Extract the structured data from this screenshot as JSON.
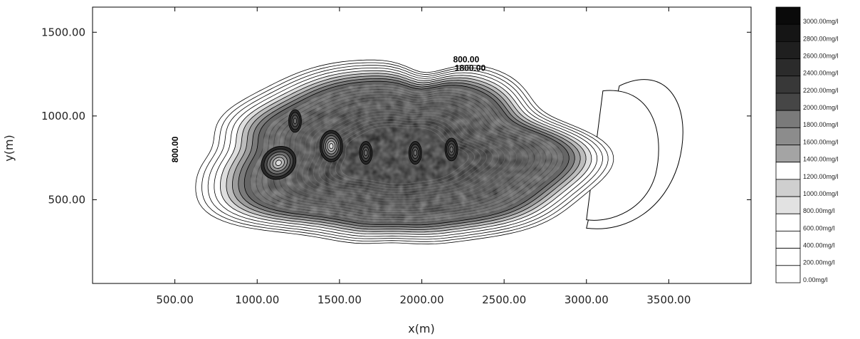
{
  "chart_data": {
    "type": "contour",
    "xlabel": "x(m)",
    "ylabel": "y(m)",
    "xlim": [
      0,
      4000
    ],
    "ylim": [
      0,
      1650
    ],
    "x_ticks": [
      500,
      1000,
      1500,
      2000,
      2500,
      3000,
      3500
    ],
    "x_tick_labels": [
      "500.00",
      "1000.00",
      "1500.00",
      "2000.00",
      "2500.00",
      "3000.00",
      "3500.00"
    ],
    "y_ticks": [
      500,
      1000,
      1500
    ],
    "y_tick_labels": [
      "500.00",
      "1000.00",
      "1500.00"
    ],
    "grid": false,
    "legend_position": "right",
    "legend": {
      "levels": [
        3000,
        2800,
        2600,
        2400,
        2200,
        2000,
        1800,
        1600,
        1400,
        1200,
        1000,
        800,
        600,
        400,
        200,
        0
      ],
      "labels": [
        "3000.00mg/l",
        "2800.00mg/l",
        "2600.00mg/l",
        "2400.00mg/l",
        "2200.00mg/l",
        "2000.00mg/l",
        "1800.00mg/l",
        "1600.00mg/l",
        "1400.00mg/l",
        "1200.00mg/l",
        "1000.00mg/l",
        "800.00mg/l",
        "600.00mg/l",
        "400.00mg/l",
        "200.00mg/l",
        "0.00mg/l"
      ],
      "colors": [
        "#0a0a0a",
        "#151515",
        "#1f1f1f",
        "#2b2b2b",
        "#383838",
        "#464646",
        "#7a7a7a",
        "#8c8c8c",
        "#a4a4a4",
        "#ffffff",
        "#cfcfcf",
        "#e2e2e2",
        "#ffffff",
        "#ffffff",
        "#ffffff",
        "#ffffff"
      ]
    },
    "contour_labels": [
      {
        "text": "800.00",
        "x": 2190,
        "y": 1320
      },
      {
        "text": "1800.00",
        "x": 2200,
        "y": 1270
      },
      {
        "text": "800.00",
        "x": 520,
        "y": 800
      }
    ],
    "plume": {
      "center_x": 1860,
      "center_y": 760,
      "half_width": 1120,
      "half_height": 520,
      "peak_value": 3000
    },
    "low_spots": [
      {
        "x": 1130,
        "y": 720,
        "value": 1000
      },
      {
        "x": 1450,
        "y": 820,
        "value": 1200
      },
      {
        "x": 1230,
        "y": 970,
        "value": 1600
      },
      {
        "x": 1660,
        "y": 780,
        "value": 2200
      },
      {
        "x": 1960,
        "y": 780,
        "value": 2200
      },
      {
        "x": 2180,
        "y": 800,
        "value": 2200
      }
    ]
  }
}
